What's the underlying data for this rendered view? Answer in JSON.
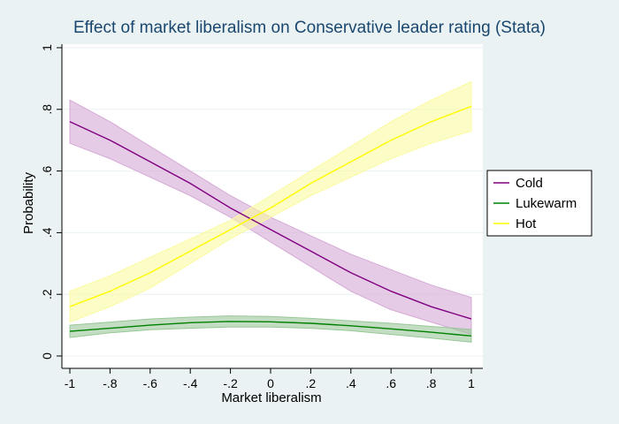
{
  "chart_data": {
    "type": "line",
    "title": "Effect of market liberalism on Conservative leader rating (Stata)",
    "xlabel": "Market liberalism",
    "ylabel": "Probability",
    "xlim": [
      -1,
      1
    ],
    "ylim": [
      0,
      1
    ],
    "xticks": [
      -1,
      -0.8,
      -0.6,
      -0.4,
      -0.2,
      0,
      0.2,
      0.4,
      0.6,
      0.8,
      1
    ],
    "xtick_labels": [
      "-1",
      "-.8",
      "-.6",
      "-.4",
      "-.2",
      "0",
      ".2",
      ".4",
      ".6",
      ".8",
      "1"
    ],
    "yticks": [
      0,
      0.2,
      0.4,
      0.6,
      0.8,
      1
    ],
    "ytick_labels": [
      "0",
      ".2",
      ".4",
      ".6",
      ".8",
      "1"
    ],
    "grid": "horizontal",
    "legend_position": "right",
    "x": [
      -1,
      -0.8,
      -0.6,
      -0.4,
      -0.2,
      0,
      0.2,
      0.4,
      0.6,
      0.8,
      1
    ],
    "series": [
      {
        "name": "Cold",
        "color": "#800080",
        "band_color": "#d6a9d6",
        "values": [
          0.76,
          0.7,
          0.63,
          0.56,
          0.48,
          0.41,
          0.34,
          0.27,
          0.21,
          0.16,
          0.12
        ],
        "lower": [
          0.69,
          0.64,
          0.58,
          0.52,
          0.45,
          0.37,
          0.29,
          0.21,
          0.15,
          0.11,
          0.07
        ],
        "upper": [
          0.83,
          0.76,
          0.68,
          0.6,
          0.52,
          0.45,
          0.39,
          0.33,
          0.28,
          0.23,
          0.19
        ]
      },
      {
        "name": "Lukewarm",
        "color": "#008000",
        "band_color": "#99c799",
        "values": [
          0.08,
          0.09,
          0.1,
          0.108,
          0.112,
          0.111,
          0.106,
          0.098,
          0.088,
          0.077,
          0.065
        ],
        "lower": [
          0.06,
          0.075,
          0.085,
          0.09,
          0.094,
          0.094,
          0.09,
          0.082,
          0.07,
          0.058,
          0.045
        ],
        "upper": [
          0.1,
          0.11,
          0.12,
          0.126,
          0.13,
          0.128,
          0.122,
          0.114,
          0.106,
          0.096,
          0.086
        ]
      },
      {
        "name": "Hot",
        "color": "#ffff00",
        "band_color": "#fafaa0",
        "values": [
          0.16,
          0.21,
          0.27,
          0.34,
          0.41,
          0.48,
          0.56,
          0.63,
          0.7,
          0.76,
          0.81
        ],
        "lower": [
          0.11,
          0.16,
          0.22,
          0.3,
          0.38,
          0.45,
          0.52,
          0.58,
          0.64,
          0.69,
          0.73
        ],
        "upper": [
          0.21,
          0.26,
          0.32,
          0.38,
          0.44,
          0.52,
          0.6,
          0.68,
          0.76,
          0.83,
          0.89
        ]
      }
    ]
  }
}
